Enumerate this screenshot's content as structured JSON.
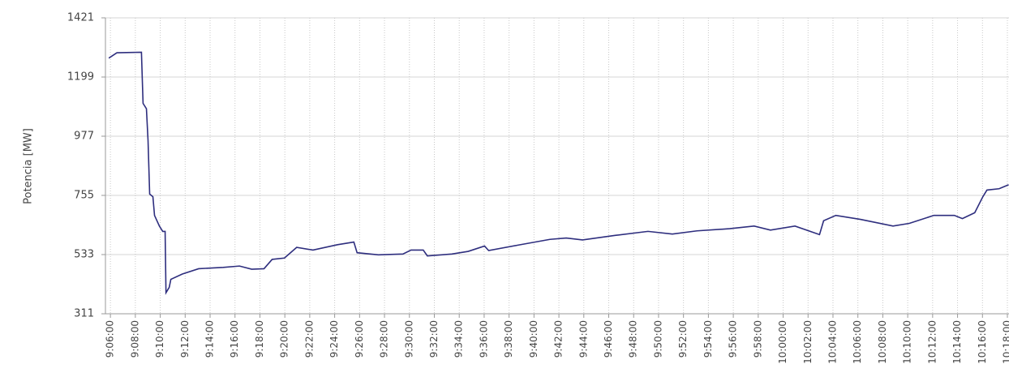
{
  "chart_data": {
    "type": "line",
    "y_label": "Potencia [MW]",
    "x": [
      545.87,
      546.52,
      548.49,
      548.62,
      548.89,
      549.02,
      549.15,
      549.41,
      549.54,
      549.93,
      550.2,
      550.39,
      550.46,
      550.72,
      550.85,
      551.77,
      553.08,
      555.05,
      556.36,
      557.34,
      558.33,
      558.98,
      559.97,
      560.95,
      562.26,
      564.23,
      565.54,
      565.8,
      567.51,
      569.48,
      570.13,
      571.11,
      571.44,
      573.41,
      574.72,
      576.03,
      576.36,
      578.66,
      581.28,
      582.59,
      583.9,
      586.52,
      589.15,
      591.11,
      593.08,
      595.7,
      597.67,
      598.98,
      600.95,
      602.92,
      603.25,
      604.23,
      606.2,
      608.82,
      610.13,
      612.1,
      613.74,
      614.39,
      615.38,
      616.03,
      616.36,
      617.34,
      618.1
    ],
    "series": [
      {
        "name": "Potencia",
        "color": "#2e2e7e",
        "values": [
          1270,
          1290,
          1292,
          1100,
          1080,
          960,
          760,
          750,
          680,
          640,
          620,
          620,
          390,
          410,
          440,
          460,
          480,
          485,
          490,
          478,
          480,
          515,
          520,
          560,
          550,
          570,
          580,
          540,
          532,
          535,
          550,
          550,
          528,
          535,
          545,
          565,
          548,
          568,
          590,
          595,
          588,
          605,
          620,
          610,
          622,
          630,
          640,
          625,
          640,
          608,
          660,
          680,
          665,
          640,
          650,
          680,
          680,
          668,
          690,
          750,
          775,
          780,
          795
        ]
      }
    ],
    "xlim": [
      545.6,
      618.13
    ],
    "xticks": [
      {
        "value": 546,
        "label": "9:06:00"
      },
      {
        "value": 548,
        "label": "9:08:00"
      },
      {
        "value": 550,
        "label": "9:10:00"
      },
      {
        "value": 552,
        "label": "9:12:00"
      },
      {
        "value": 554,
        "label": "9:14:00"
      },
      {
        "value": 556,
        "label": "9:16:00"
      },
      {
        "value": 558,
        "label": "9:18:00"
      },
      {
        "value": 560,
        "label": "9:20:00"
      },
      {
        "value": 562,
        "label": "9:22:00"
      },
      {
        "value": 564,
        "label": "9:24:00"
      },
      {
        "value": 566,
        "label": "9:26:00"
      },
      {
        "value": 568,
        "label": "9:28:00"
      },
      {
        "value": 570,
        "label": "9:30:00"
      },
      {
        "value": 572,
        "label": "9:32:00"
      },
      {
        "value": 574,
        "label": "9:34:00"
      },
      {
        "value": 576,
        "label": "9:36:00"
      },
      {
        "value": 578,
        "label": "9:38:00"
      },
      {
        "value": 580,
        "label": "9:40:00"
      },
      {
        "value": 582,
        "label": "9:42:00"
      },
      {
        "value": 584,
        "label": "9:44:00"
      },
      {
        "value": 586,
        "label": "9:46:00"
      },
      {
        "value": 588,
        "label": "9:48:00"
      },
      {
        "value": 590,
        "label": "9:50:00"
      },
      {
        "value": 592,
        "label": "9:52:00"
      },
      {
        "value": 594,
        "label": "9:54:00"
      },
      {
        "value": 596,
        "label": "9:56:00"
      },
      {
        "value": 598,
        "label": "9:58:00"
      },
      {
        "value": 600,
        "label": "10:00:00"
      },
      {
        "value": 602,
        "label": "10:02:00"
      },
      {
        "value": 604,
        "label": "10:04:00"
      },
      {
        "value": 606,
        "label": "10:06:00"
      },
      {
        "value": 608,
        "label": "10:08:00"
      },
      {
        "value": 610,
        "label": "10:10:00"
      },
      {
        "value": 612,
        "label": "10:12:00"
      },
      {
        "value": 614,
        "label": "10:14:00"
      },
      {
        "value": 616,
        "label": "10:16:00"
      },
      {
        "value": 618,
        "label": "10:18:00"
      }
    ],
    "ylim": [
      311,
      1421
    ],
    "yticks": [
      311,
      533,
      755,
      977,
      1199,
      1421
    ],
    "grid": true
  }
}
